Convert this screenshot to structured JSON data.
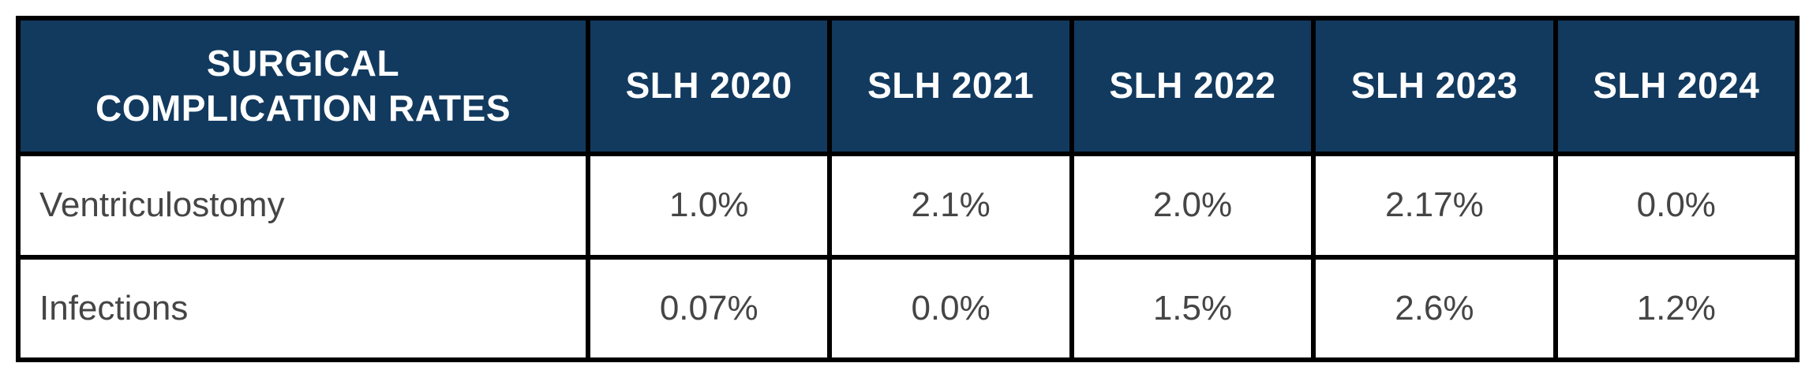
{
  "table": {
    "header": {
      "label": "SURGICAL COMPLICATION RATES",
      "columns": [
        "SLH 2020",
        "SLH 2021",
        "SLH 2022",
        "SLH 2023",
        "SLH 2024"
      ]
    },
    "rows": [
      {
        "label": "Ventriculostomy",
        "values": [
          "1.0%",
          "2.1%",
          "2.0%",
          "2.17%",
          "0.0%"
        ]
      },
      {
        "label": "Infections",
        "values": [
          "0.07%",
          "0.0%",
          "1.5%",
          "2.6%",
          "1.2%"
        ]
      }
    ],
    "colors": {
      "header_bg": "#123A5F",
      "header_text": "#FFFFFF",
      "body_text": "#454545",
      "border": "#000000"
    }
  },
  "chart_data": {
    "type": "table",
    "title": "SURGICAL COMPLICATION RATES",
    "categories": [
      "SLH 2020",
      "SLH 2021",
      "SLH 2022",
      "SLH 2023",
      "SLH 2024"
    ],
    "series": [
      {
        "name": "Ventriculostomy",
        "values": [
          1.0,
          2.1,
          2.0,
          2.17,
          0.0
        ]
      },
      {
        "name": "Infections",
        "values": [
          0.07,
          0.0,
          1.5,
          2.6,
          1.2
        ]
      }
    ],
    "units": "%"
  }
}
